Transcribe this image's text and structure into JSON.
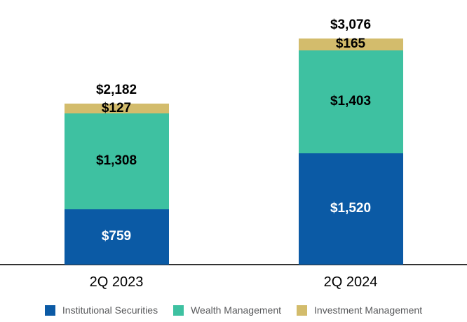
{
  "chart_data": {
    "type": "bar",
    "stacked": true,
    "title": "",
    "currency_prefix": "$",
    "categories": [
      "2Q 2023",
      "2Q 2024"
    ],
    "series": [
      {
        "name": "Institutional Securities",
        "color": "#0B5AA5",
        "text_color": "#FFFFFF",
        "values": [
          759,
          1520
        ]
      },
      {
        "name": "Wealth Management",
        "color": "#3EC1A1",
        "text_color": "#000000",
        "values": [
          1308,
          1403
        ]
      },
      {
        "name": "Investment Management",
        "color": "#D3BC6C",
        "text_color": "#000000",
        "values": [
          127,
          165
        ]
      }
    ],
    "totals": [
      2182,
      3076
    ],
    "total_labels": [
      "$2,182",
      "$3,076"
    ],
    "segment_labels": [
      [
        "$759",
        "$1,308",
        "$127"
      ],
      [
        "$1,520",
        "$1,403",
        "$165"
      ]
    ],
    "grid": false,
    "legend_position": "bottom",
    "axis_line_color": "#333333",
    "category_label_color": "#000000",
    "total_label_color": "#000000",
    "legend_text_color": "#58595B"
  }
}
